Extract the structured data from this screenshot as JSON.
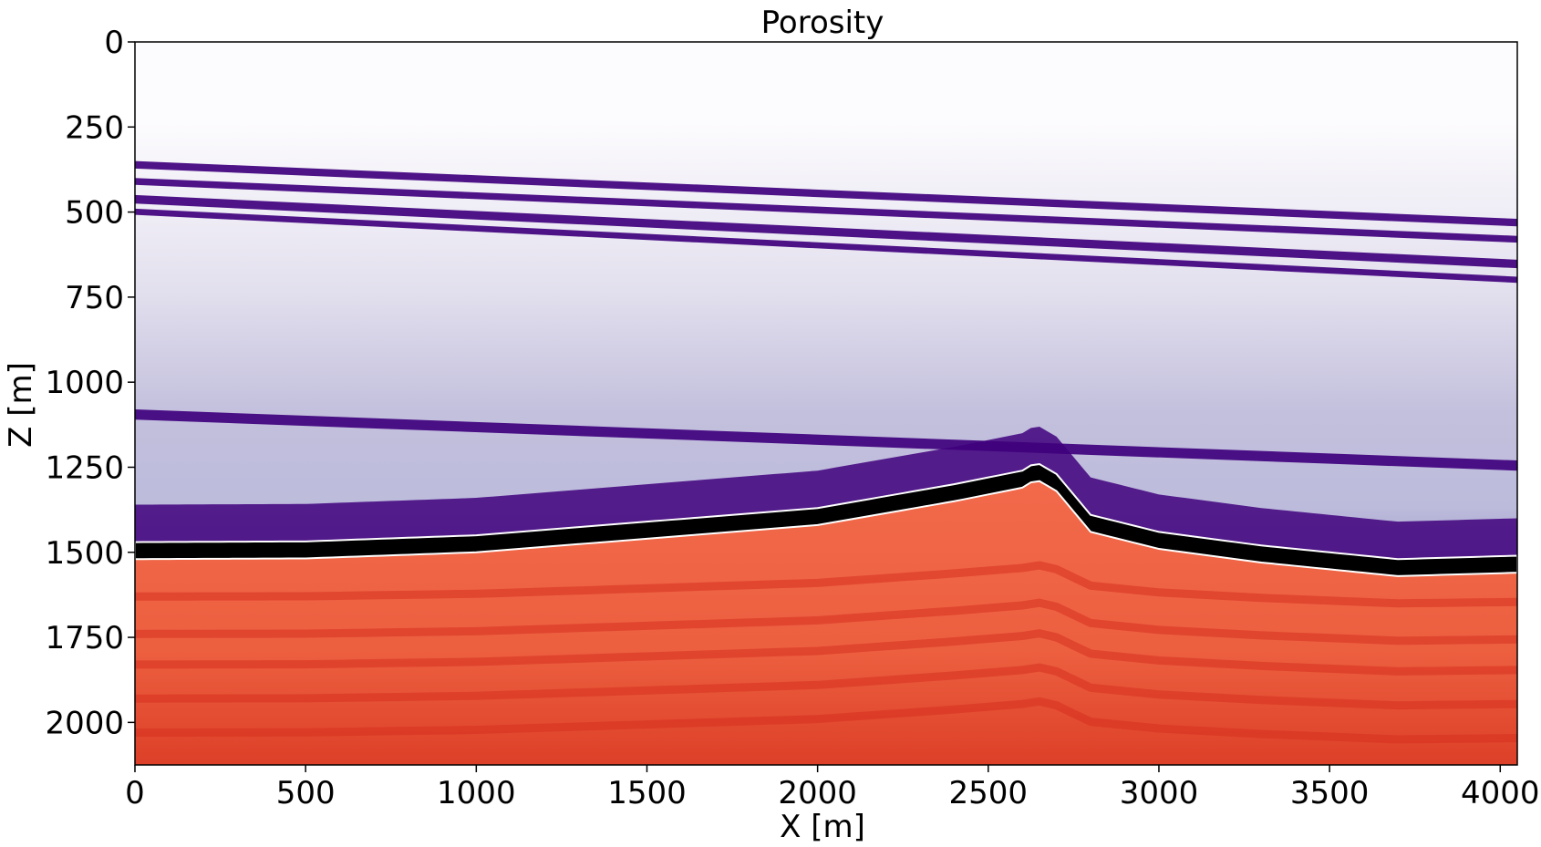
{
  "chart_data": {
    "type": "heatmap",
    "title": "Porosity",
    "xlabel": "X [m]",
    "ylabel": "Z [m]",
    "xlim": [
      0,
      4050
    ],
    "ylim": [
      2125,
      0
    ],
    "xticks": [
      0,
      500,
      1000,
      1500,
      2000,
      2500,
      3000,
      3500,
      4000
    ],
    "yticks": [
      0,
      250,
      500,
      750,
      1000,
      1250,
      1500,
      1750,
      2000
    ],
    "y_axis_inverted": true,
    "grid": false,
    "colormaps": {
      "overburden": "purples",
      "reservoir": "reds"
    },
    "colors": {
      "overburden_dark": "#3f007d",
      "overburden_mid": "#8e88c0",
      "overburden_light": "#efedf5",
      "seal_layer": "#000000",
      "reservoir_base": "#ef6548",
      "reservoir_dark": "#d7301f"
    },
    "water_bottom_depth": 240,
    "seal_top_horizon": {
      "x": [
        0,
        500,
        1000,
        1500,
        2000,
        2400,
        2600,
        2640,
        2700,
        2800,
        3000,
        3300,
        3700,
        4050
      ],
      "z": [
        1470,
        1468,
        1450,
        1410,
        1370,
        1300,
        1260,
        1235,
        1270,
        1390,
        1440,
        1480,
        1520,
        1510
      ]
    },
    "seal_thickness": 50,
    "bright_overburden_layers": [
      {
        "z_left": 350,
        "z_right": 520,
        "thickness": 22
      },
      {
        "z_left": 400,
        "z_right": 570,
        "thickness": 20
      },
      {
        "z_left": 450,
        "z_right": 640,
        "thickness": 25
      },
      {
        "z_left": 490,
        "z_right": 690,
        "thickness": 18
      },
      {
        "z_left": 1080,
        "z_right": 1230,
        "thickness": 30
      }
    ]
  }
}
